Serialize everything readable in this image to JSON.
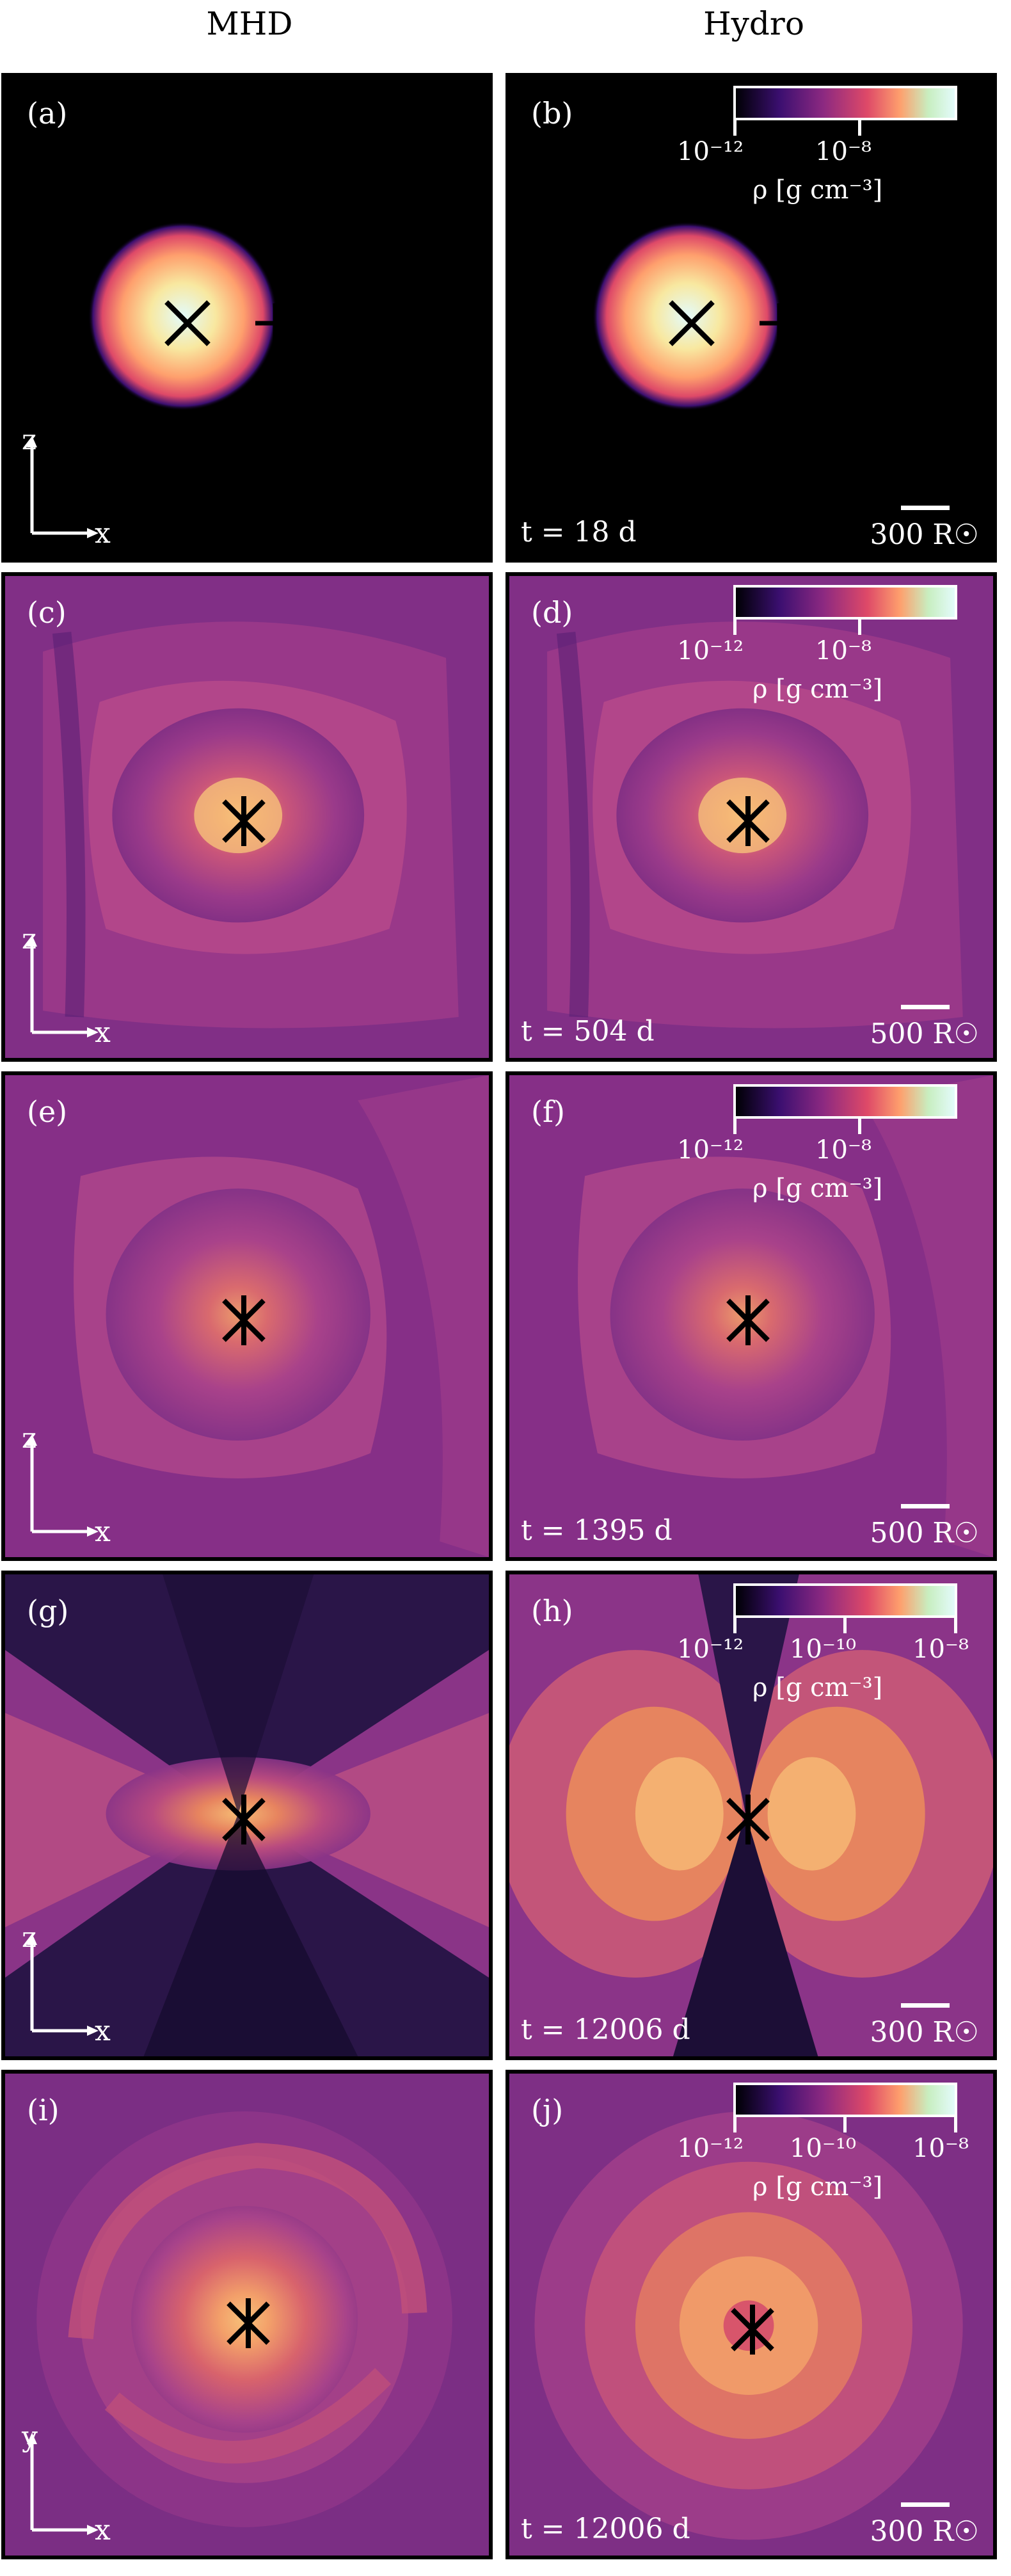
{
  "columns": {
    "left": "MHD",
    "right": "Hydro"
  },
  "colors": {
    "cmap": [
      "#000004",
      "#3b0f70",
      "#8c2981",
      "#de4968",
      "#fe9f6d",
      "#f8e8a0",
      "#e3fbfb"
    ]
  },
  "rows": [
    {
      "left": {
        "label": "(a)",
        "axes": [
          "x",
          "z"
        ]
      },
      "right": {
        "label": "(b)",
        "time": "t = 18 d",
        "scale": "300 R☉",
        "cbar": {
          "ticks": [
            "10⁻¹²",
            "10⁻⁸"
          ],
          "label": "ρ [g cm⁻³]"
        }
      }
    },
    {
      "left": {
        "label": "(c)",
        "axes": [
          "x",
          "z"
        ]
      },
      "right": {
        "label": "(d)",
        "time": "t = 504 d",
        "scale": "500 R☉",
        "cbar": {
          "ticks": [
            "10⁻¹²",
            "10⁻⁸"
          ],
          "label": "ρ [g cm⁻³]"
        }
      }
    },
    {
      "left": {
        "label": "(e)",
        "axes": [
          "x",
          "z"
        ]
      },
      "right": {
        "label": "(f)",
        "time": "t = 1395 d",
        "scale": "500 R☉",
        "cbar": {
          "ticks": [
            "10⁻¹²",
            "10⁻⁸"
          ],
          "label": "ρ [g cm⁻³]"
        }
      }
    },
    {
      "left": {
        "label": "(g)",
        "axes": [
          "x",
          "z"
        ]
      },
      "right": {
        "label": "(h)",
        "time": "t = 12006 d",
        "scale": "300 R☉",
        "cbar": {
          "ticks": [
            "10⁻¹²",
            "10⁻¹⁰",
            "10⁻⁸"
          ],
          "label": "ρ [g cm⁻³]"
        }
      }
    },
    {
      "left": {
        "label": "(i)",
        "axes": [
          "x",
          "y"
        ]
      },
      "right": {
        "label": "(j)",
        "time": "t = 12006 d",
        "scale": "300 R☉",
        "cbar": {
          "ticks": [
            "10⁻¹²",
            "10⁻¹⁰",
            "10⁻⁸"
          ],
          "label": "ρ [g cm⁻³]"
        }
      }
    }
  ]
}
